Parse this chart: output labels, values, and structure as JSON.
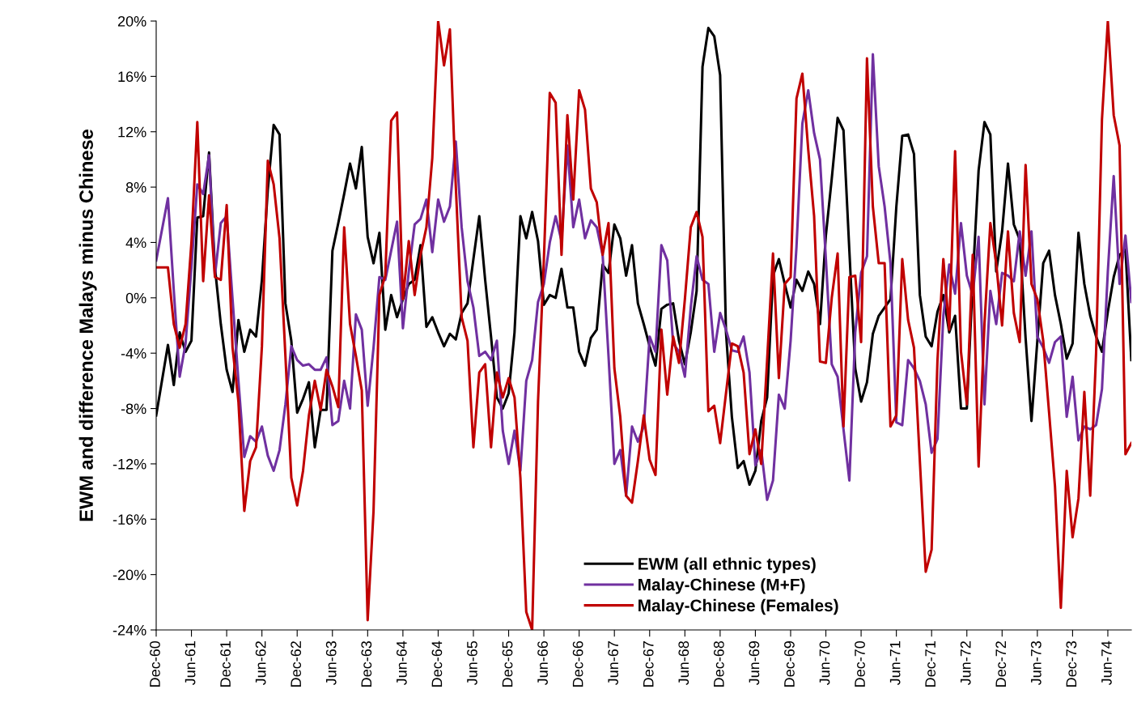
{
  "chart_data": {
    "type": "line",
    "ylabel": "EWM and difference Malays minus Chinese",
    "x": [
      "1960-12",
      "1961-02",
      "1961-03",
      "1961-04",
      "1961-05",
      "1961-06",
      "1961-07",
      "1961-08",
      "1961-09",
      "1961-10",
      "1961-11",
      "1961-12",
      "1962-01",
      "1962-02",
      "1962-03",
      "1962-04",
      "1962-05",
      "1962-06",
      "1962-07",
      "1962-08",
      "1962-09",
      "1962-10",
      "1962-11",
      "1962-12",
      "1963-01",
      "1963-02",
      "1963-03",
      "1963-04",
      "1963-05",
      "1963-06",
      "1963-07",
      "1963-08",
      "1963-09",
      "1963-10",
      "1963-11",
      "1963-12",
      "1964-01",
      "1964-02",
      "1964-03",
      "1964-04",
      "1964-05",
      "1964-06",
      "1964-07",
      "1964-08",
      "1964-09",
      "1964-10",
      "1964-11",
      "1964-12",
      "1965-01",
      "1965-02",
      "1965-03",
      "1965-04",
      "1965-05",
      "1965-06",
      "1965-07",
      "1965-08",
      "1965-09",
      "1965-10",
      "1965-11",
      "1965-12",
      "1966-01",
      "1966-02",
      "1966-03",
      "1966-04",
      "1966-05",
      "1966-06",
      "1966-07",
      "1966-08",
      "1966-09",
      "1966-10",
      "1966-11",
      "1966-12",
      "1967-01",
      "1967-02",
      "1967-03",
      "1967-04",
      "1967-05",
      "1967-06",
      "1967-07",
      "1967-08",
      "1967-09",
      "1967-10",
      "1967-11",
      "1967-12",
      "1968-01",
      "1968-02",
      "1968-03",
      "1968-04",
      "1968-05",
      "1968-06",
      "1968-07",
      "1968-08",
      "1968-09",
      "1968-10",
      "1968-11",
      "1968-12",
      "1969-01",
      "1969-02",
      "1969-03",
      "1969-04",
      "1969-05",
      "1969-06",
      "1969-07",
      "1969-08",
      "1969-09",
      "1969-10",
      "1969-11",
      "1969-12",
      "1970-01",
      "1970-02",
      "1970-03",
      "1970-04",
      "1970-05",
      "1970-06",
      "1970-07",
      "1970-08",
      "1970-09",
      "1970-10",
      "1970-11",
      "1970-12",
      "1971-01",
      "1971-02",
      "1971-03",
      "1971-04",
      "1971-05",
      "1971-06",
      "1971-07",
      "1971-08",
      "1971-09",
      "1971-10",
      "1971-11",
      "1971-12",
      "1972-01",
      "1972-02",
      "1972-03",
      "1972-04",
      "1972-05",
      "1972-06",
      "1972-07",
      "1972-08",
      "1972-09",
      "1972-10",
      "1972-11",
      "1972-12",
      "1973-01",
      "1973-02",
      "1973-03",
      "1973-04",
      "1973-05",
      "1973-06",
      "1973-07",
      "1973-08",
      "1973-09",
      "1973-10",
      "1973-11",
      "1973-12",
      "1974-01",
      "1974-02",
      "1974-03",
      "1974-04",
      "1974-05",
      "1974-06",
      "1974-07",
      "1974-08",
      "1974-09",
      "1974-10"
    ],
    "series": [
      {
        "name": "EWM (all ethnic types)",
        "color": "#000000",
        "values": [
          -8.5,
          -3.4,
          -6.3,
          -2.5,
          -3.9,
          -3.1,
          5.8,
          5.9,
          10.5,
          2.2,
          -1.9,
          -5.2,
          -6.8,
          -1.6,
          -3.9,
          -2.3,
          -2.8,
          1.3,
          7.8,
          12.5,
          11.8,
          -0.4,
          -3.1,
          -8.3,
          -7.3,
          -6.1,
          -10.8,
          -8.1,
          -8.1,
          3.4,
          5.4,
          7.5,
          9.7,
          7.9,
          10.9,
          4.4,
          2.5,
          4.7,
          -2.3,
          0.2,
          -1.4,
          -0.1,
          1,
          1.3,
          3.8,
          -2.1,
          -1.4,
          -2.5,
          -3.5,
          -2.6,
          -3.0,
          -1.1,
          -0.4,
          2.8,
          5.9,
          1.3,
          -2.8,
          -7.2,
          -8.0,
          -6.9,
          -2.5,
          5.9,
          4.3,
          6.2,
          4.1,
          -0.5,
          0.2,
          0,
          2.1,
          -0.7,
          -0.7,
          -3.9,
          -4.9,
          -2.9,
          -2.3,
          2.4,
          1.8,
          5.3,
          4.3,
          1.6,
          3.8,
          -0.4,
          -1.9,
          -3.5,
          -4.9,
          -0.8,
          -0.5,
          -0.4,
          -3.1,
          -4.8,
          -2.5,
          0.5,
          16.7,
          19.5,
          18.9,
          16.1,
          -2.5,
          -8.6,
          -12.3,
          -11.8,
          -13.5,
          -12.5,
          -8.9,
          -7.2,
          1.6,
          2.8,
          1,
          -0.7,
          1.3,
          0.5,
          1.9,
          1,
          -1.9,
          4.5,
          8.6,
          13,
          12.1,
          3.4,
          -5.1,
          -7.5,
          -6.1,
          -2.6,
          -1.3,
          -0.7,
          -0.1,
          6.6,
          11.7,
          11.8,
          10.4,
          0.2,
          -2.8,
          -3.5,
          -1,
          0.2,
          -2.5,
          -1.3,
          -8,
          -8,
          1.3,
          9.2,
          12.7,
          11.8,
          1.9,
          4.8,
          9.7,
          5.3,
          4.2,
          -2.9,
          -8.9,
          -3.1,
          2.5,
          3.4,
          0.2,
          -1.9,
          -4.4,
          -3.3,
          4.7,
          1,
          -1.3,
          -2.8,
          -3.9,
          -1.0,
          1.5,
          3.1,
          3.5,
          -4.5
        ]
      },
      {
        "name": "Malay-Chinese (M+F)",
        "color": "#7030a0",
        "values": [
          2.7,
          7.2,
          0.5,
          -5.7,
          -3.3,
          2.2,
          8.2,
          7.5,
          10.3,
          1.6,
          5.4,
          5.9,
          -0.1,
          -6,
          -11.5,
          -10,
          -10.4,
          -9.3,
          -11.4,
          -12.5,
          -11,
          -7.7,
          -3.5,
          -4.5,
          -4.9,
          -4.8,
          -5.2,
          -5.2,
          -4.3,
          -9.2,
          -8.9,
          -6.0,
          -8.0,
          -1.2,
          -2.3,
          -7.8,
          -3.6,
          1.5,
          1.3,
          3.4,
          5.5,
          -2.2,
          1.9,
          5.3,
          5.7,
          7.1,
          3.3,
          7.1,
          5.5,
          6.6,
          11.3,
          5.1,
          1.2,
          -0.7,
          -4.2,
          -3.9,
          -4.5,
          -3.1,
          -9.6,
          -12,
          -9.6,
          -12.5,
          -6,
          -4.5,
          -0.3,
          1,
          4,
          5.9,
          4.1,
          11,
          5.1,
          7.1,
          4.3,
          5.6,
          5.1,
          3.1,
          -4.2,
          -12,
          -11,
          -14.3,
          -9.3,
          -10.4,
          -9.3,
          -2.8,
          -3.9,
          3.8,
          2.7,
          -3.3,
          -3.9,
          -5.7,
          -0.7,
          3,
          1.3,
          1,
          -3.9,
          -1.1,
          -2.3,
          -3.8,
          -3.9,
          -2.8,
          -5.4,
          -12.1,
          -11,
          -14.6,
          -13.2,
          -7,
          -8,
          -3.1,
          3.7,
          12.6,
          15,
          11.9,
          10,
          2.8,
          -4.8,
          -5.7,
          -9.5,
          -13.2,
          -2.5,
          1.8,
          3,
          17.6,
          9.5,
          6.6,
          2.5,
          -9,
          -9.2,
          -4.5,
          -5.1,
          -6,
          -7.7,
          -11.2,
          -10.2,
          -1.3,
          2.4,
          0.3,
          5.4,
          1.6,
          0.2,
          4.4,
          -7.7,
          0.5,
          -1.9,
          1.8,
          1.6,
          1.2,
          4.8,
          1.6,
          4.8,
          -2.8,
          -3.6,
          -4.7,
          -3.2,
          -2.8,
          -8.6,
          -5.7,
          -10.3,
          -9.3,
          -9.5,
          -9.2,
          -6.6,
          1.9,
          8.8,
          1,
          4.5,
          -0.3
        ]
      },
      {
        "name": "Malay-Chinese (Females)",
        "color": "#c00000",
        "values": [
          2.2,
          2.2,
          -1.9,
          -3.6,
          -1.9,
          4,
          12.7,
          1.2,
          7.4,
          1.5,
          1.3,
          6.7,
          -3.6,
          -7.5,
          -15.4,
          -11.8,
          -10.8,
          -3.5,
          9.9,
          8.2,
          4.3,
          -4.2,
          -13,
          -15,
          -12.5,
          -8.5,
          -6,
          -8.1,
          -5.2,
          -6.4,
          -7.9,
          5.1,
          -1.9,
          -4.2,
          -6.7,
          -23.3,
          -15.4,
          0.2,
          1.6,
          12.8,
          13.4,
          -0.1,
          4.1,
          0.2,
          3.1,
          5.1,
          10.1,
          20,
          16.8,
          19.4,
          8.1,
          -1.4,
          -3.1,
          -10.8,
          -5.4,
          -4.8,
          -10.8,
          -5.4,
          -7.2,
          -5.8,
          -7.2,
          -13,
          -22.7,
          -24,
          -7.5,
          2.8,
          14.8,
          14.1,
          3.1,
          13.2,
          7.1,
          15,
          13.6,
          7.9,
          6.9,
          3.1,
          5.4,
          -5.1,
          -8.6,
          -14.3,
          -14.8,
          -11.8,
          -8.5,
          -11.7,
          -12.8,
          -2.3,
          -7,
          -2.8,
          -4.7,
          -0.1,
          5.1,
          6.2,
          4.4,
          -8.2,
          -7.8,
          -10.5,
          -6.9,
          -3.3,
          -3.5,
          -5.4,
          -11.3,
          -9.5,
          -12,
          -4.5,
          3.2,
          -5.8,
          1,
          1.5,
          14.4,
          16.2,
          10.7,
          5.9,
          -4.6,
          -4.7,
          0,
          3.2,
          -9.3,
          1.5,
          1.6,
          -3.2,
          17.3,
          6.6,
          2.5,
          2.5,
          -9.3,
          -8.5,
          2.8,
          -1.6,
          -3.6,
          -11.8,
          -19.8,
          -18.2,
          -4.5,
          2.8,
          -2.3,
          10.6,
          -3.9,
          -7.7,
          3.1,
          -12.2,
          -1.9,
          5.4,
          2.5,
          -2,
          4.8,
          -1.1,
          -3.2,
          9.6,
          1,
          -0.1,
          -3.1,
          -8.3,
          -13.6,
          -22.4,
          -12.5,
          -17.3,
          -14.5,
          -6.8,
          -14.3,
          -4,
          12.9,
          20,
          13.2,
          11,
          -11.3,
          -10.5
        ]
      }
    ],
    "xlim": [
      "1960-12",
      "1974-10"
    ],
    "xticks": [
      {
        "value": "1960-12",
        "label": "Dec-60"
      },
      {
        "value": "1961-06",
        "label": "Jun-61"
      },
      {
        "value": "1961-12",
        "label": "Dec-61"
      },
      {
        "value": "1962-06",
        "label": "Jun-62"
      },
      {
        "value": "1962-12",
        "label": "Dec-62"
      },
      {
        "value": "1963-06",
        "label": "Jun-63"
      },
      {
        "value": "1963-12",
        "label": "Dec-63"
      },
      {
        "value": "1964-06",
        "label": "Jun-64"
      },
      {
        "value": "1964-12",
        "label": "Dec-64"
      },
      {
        "value": "1965-06",
        "label": "Jun-65"
      },
      {
        "value": "1965-12",
        "label": "Dec-65"
      },
      {
        "value": "1966-06",
        "label": "Jun-66"
      },
      {
        "value": "1966-12",
        "label": "Dec-66"
      },
      {
        "value": "1967-06",
        "label": "Jun-67"
      },
      {
        "value": "1967-12",
        "label": "Dec-67"
      },
      {
        "value": "1968-06",
        "label": "Jun-68"
      },
      {
        "value": "1968-12",
        "label": "Dec-68"
      },
      {
        "value": "1969-06",
        "label": "Jun-69"
      },
      {
        "value": "1969-12",
        "label": "Dec-69"
      },
      {
        "value": "1970-06",
        "label": "Jun-70"
      },
      {
        "value": "1970-12",
        "label": "Dec-70"
      },
      {
        "value": "1971-06",
        "label": "Jun-71"
      },
      {
        "value": "1971-12",
        "label": "Dec-71"
      },
      {
        "value": "1972-06",
        "label": "Jun-72"
      },
      {
        "value": "1972-12",
        "label": "Dec-72"
      },
      {
        "value": "1973-06",
        "label": "Jun-73"
      },
      {
        "value": "1973-12",
        "label": "Dec-73"
      },
      {
        "value": "1974-06",
        "label": "Jun-74"
      }
    ],
    "ylim": [
      -24,
      20
    ],
    "yticks": [
      {
        "value": -24,
        "label": "-24%"
      },
      {
        "value": -20,
        "label": "-20%"
      },
      {
        "value": -16,
        "label": "-16%"
      },
      {
        "value": -12,
        "label": "-12%"
      },
      {
        "value": -8,
        "label": "-8%"
      },
      {
        "value": -4,
        "label": "-4%"
      },
      {
        "value": 0,
        "label": "0%"
      },
      {
        "value": 4,
        "label": "4%"
      },
      {
        "value": 8,
        "label": "8%"
      },
      {
        "value": 12,
        "label": "12%"
      },
      {
        "value": 16,
        "label": "16%"
      },
      {
        "value": 20,
        "label": "20%"
      }
    ],
    "grid": false,
    "legend": "bottom",
    "marker": "none",
    "line_style": "solid"
  }
}
